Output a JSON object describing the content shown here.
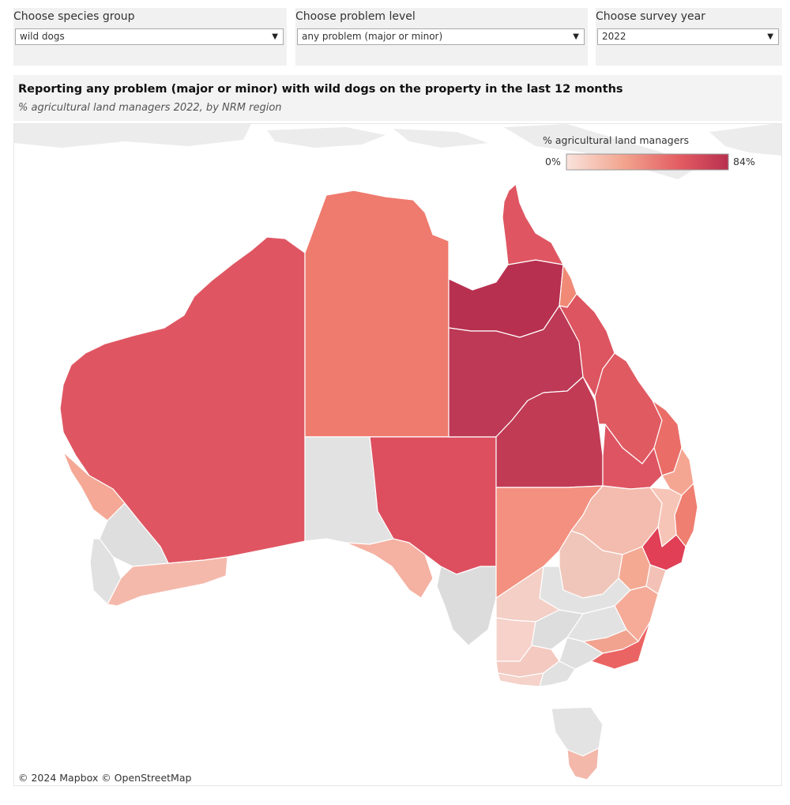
{
  "filters": {
    "species": {
      "label": "Choose species group",
      "value": "wild dogs"
    },
    "problem": {
      "label": "Choose problem level",
      "value": "any problem (major or minor)"
    },
    "year": {
      "label": "Choose survey year",
      "value": "2022"
    }
  },
  "header": {
    "title": "Reporting any problem (major or minor) with wild dogs on the property in the last 12 months",
    "subtitle": "% agricultural land managers 2022, by NRM region"
  },
  "legend": {
    "title": "% agricultural land managers",
    "min_label": "0%",
    "max_label": "84%",
    "min_color": "#f9e3dc",
    "max_color": "#b8304f"
  },
  "colors": {
    "no_data": "#e4e4e4",
    "background_land": "#ececec",
    "region_border": "#ffffff"
  },
  "attribution": "© 2024 Mapbox  © OpenStreetMap"
}
